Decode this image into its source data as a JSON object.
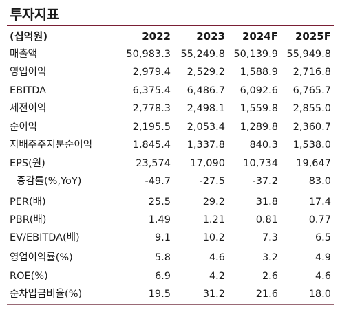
{
  "title": "투자지표",
  "header": {
    "unit": "(십억원)",
    "cols": [
      "2022",
      "2023",
      "2024F",
      "2025F"
    ]
  },
  "group1": [
    {
      "label": "매출액",
      "values": [
        "50,983.3",
        "55,249.8",
        "50,139.9",
        "55,949.8"
      ]
    },
    {
      "label": "영업이익",
      "values": [
        "2,979.4",
        "2,529.2",
        "1,588.9",
        "2,716.8"
      ]
    },
    {
      "label": "EBITDA",
      "values": [
        "6,375.4",
        "6,486.7",
        "6,092.6",
        "6,765.7"
      ]
    },
    {
      "label": "세전이익",
      "values": [
        "2,778.3",
        "2,498.1",
        "1,559.8",
        "2,855.0"
      ]
    },
    {
      "label": "순이익",
      "values": [
        "2,195.5",
        "2,053.4",
        "1,289.8",
        "2,360.7"
      ]
    },
    {
      "label": "지배주주지분순이익",
      "values": [
        "1,845.4",
        "1,337.8",
        "840.3",
        "1,538.0"
      ]
    },
    {
      "label": "EPS(원)",
      "values": [
        "23,574",
        "17,090",
        "10,734",
        "19,647"
      ]
    },
    {
      "label": "증감률(%,YoY)",
      "values": [
        "-49.7",
        "-27.5",
        "-37.2",
        "83.0"
      ]
    }
  ],
  "group2": [
    {
      "label": "PER(배)",
      "values": [
        "25.5",
        "29.2",
        "31.8",
        "17.4"
      ]
    },
    {
      "label": "PBR(배)",
      "values": [
        "1.49",
        "1.21",
        "0.81",
        "0.77"
      ]
    },
    {
      "label": "EV/EBITDA(배)",
      "values": [
        "9.1",
        "10.2",
        "7.3",
        "6.5"
      ]
    }
  ],
  "group3": [
    {
      "label": "영업이익률(%)",
      "values": [
        "5.8",
        "4.6",
        "3.2",
        "4.9"
      ]
    },
    {
      "label": "ROE(%)",
      "values": [
        "6.9",
        "4.2",
        "2.6",
        "4.6"
      ]
    },
    {
      "label": "순차입금비율(%)",
      "values": [
        "19.5",
        "31.2",
        "21.6",
        "18.0"
      ]
    }
  ],
  "colors": {
    "rule": "#7a1f35",
    "text": "#1a1a1a"
  }
}
